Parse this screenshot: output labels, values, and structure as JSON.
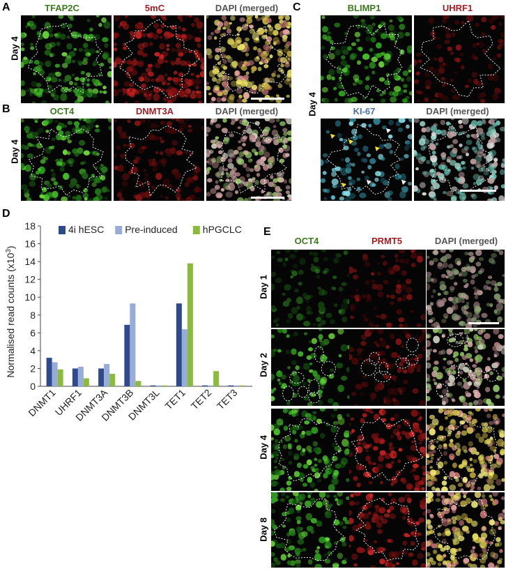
{
  "panel_labels": {
    "a": "A",
    "b": "B",
    "c": "C",
    "d": "D",
    "e": "E"
  },
  "panel_a": {
    "titles": [
      "TFAP2C",
      "5mC",
      "DAPI (merged)"
    ],
    "day": "Day 4"
  },
  "panel_b": {
    "titles": [
      "OCT4",
      "DNMT3A",
      "DAPI (merged)"
    ],
    "day": "Day 4"
  },
  "panel_c": {
    "titles_top": [
      "BLIMP1",
      "UHRF1"
    ],
    "titles_bottom": [
      "KI-67",
      "DAPI (merged)"
    ],
    "day": "Day 4"
  },
  "panel_e": {
    "titles": [
      "OCT4",
      "PRMT5",
      "DAPI (merged)"
    ],
    "days": [
      "Day 1",
      "Day 2",
      "Day 4",
      "Day 8"
    ]
  },
  "chart_data": {
    "type": "bar",
    "categories": [
      "DNMT1",
      "UHRF1",
      "DNMT3A",
      "DNMT3B",
      "DNMT3L",
      "TET1",
      "TET2",
      "TET3"
    ],
    "series": [
      {
        "name": "4i hESC",
        "color": "#2e4a8c",
        "values": [
          3.2,
          2.0,
          2.0,
          6.9,
          0.1,
          9.3,
          0.1,
          0.1
        ]
      },
      {
        "name": "Pre-induced",
        "color": "#98acd8",
        "values": [
          2.7,
          2.2,
          2.5,
          9.3,
          0.1,
          6.4,
          0.1,
          0.1
        ]
      },
      {
        "name": "hPGCLC",
        "color": "#8cbb3c",
        "values": [
          1.9,
          0.9,
          1.4,
          0.6,
          0.1,
          13.8,
          1.7,
          0.1
        ]
      }
    ],
    "ylabel": "Normalised read counts (x10",
    "ylabel_sup": "3",
    "ylabel_end": ")",
    "ylim": [
      0,
      18
    ],
    "yticks": [
      "0",
      "2",
      "4",
      "6",
      "8",
      "10",
      "12",
      "14",
      "16",
      "18"
    ],
    "legend": "top"
  }
}
